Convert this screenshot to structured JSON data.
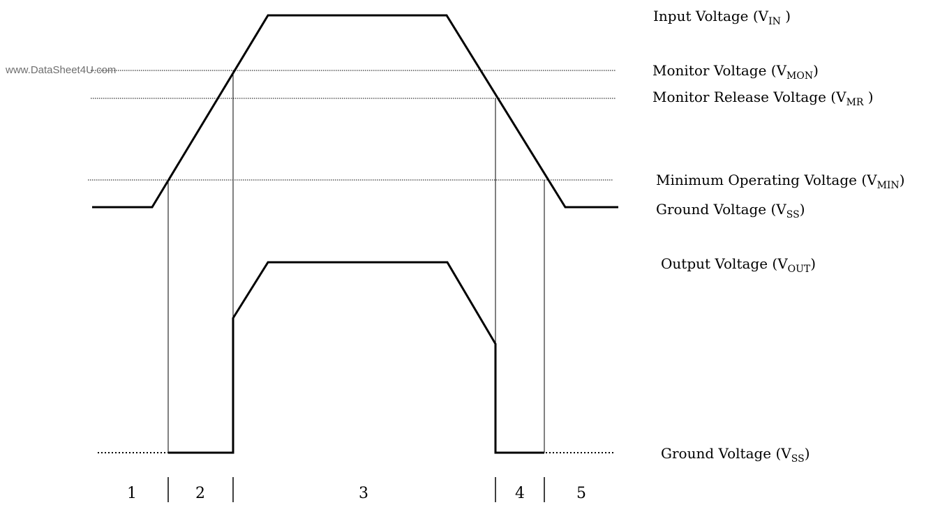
{
  "watermark": "www.DataSheet4U.com",
  "labels": {
    "input": {
      "text": "Input Voltage (V",
      "sub": "IN",
      "tail": " )"
    },
    "monitor": {
      "text": "Monitor Voltage (V",
      "sub": "MON",
      "tail": ")"
    },
    "monitor_release": {
      "text": "Monitor Release Voltage (V",
      "sub": "MR",
      "tail": " )"
    },
    "minimum": {
      "text": "Minimum Operating Voltage (V",
      "sub": "MIN",
      "tail": ")"
    },
    "ground_top": {
      "text": "Ground Voltage (V",
      "sub": "SS",
      "tail": ")"
    },
    "output": {
      "text": "Output Voltage (V",
      "sub": "OUT",
      "tail": ")"
    },
    "ground_bottom": {
      "text": "Ground Voltage (V",
      "sub": "SS",
      "tail": ")"
    }
  },
  "phases": [
    "1",
    "2",
    "3",
    "4",
    "5"
  ],
  "colors": {
    "stroke": "#000000",
    "watermark": "#6e6e6e"
  }
}
